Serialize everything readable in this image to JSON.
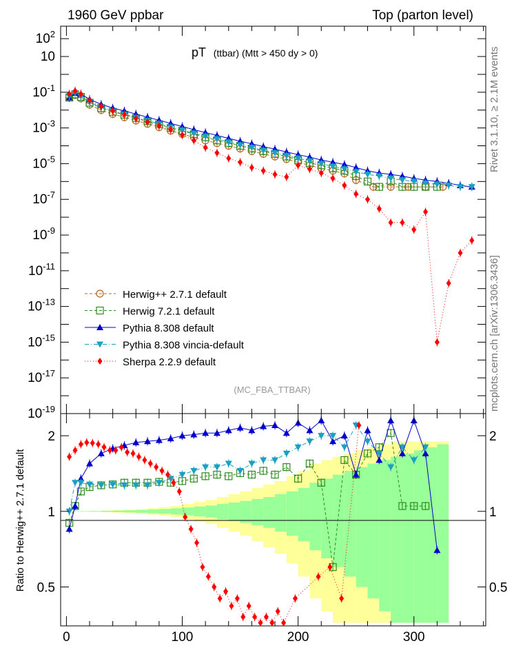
{
  "header": {
    "left": "1960 GeV ppbar",
    "right": "Top (parton level)"
  },
  "side_labels": {
    "rivet": "Rivet 3.1.10, ≥ 2.1M events",
    "mcplots": "mcplots.cern.ch [arXiv:1306.3436]"
  },
  "plot_title": {
    "main": "pT",
    "detail": "(ttbar) (Mtt > 450 dy > 0)"
  },
  "analysis_id": "(MC_FBA_TTBAR)",
  "colors": {
    "herwigpp": "#b5651d",
    "herwig7": "#2e8b1e",
    "pythia": "#0000cc",
    "vincia": "#1aa0c0",
    "sherpa": "#ff0000",
    "band_yellow": "#ffff99",
    "band_green": "#99ff99"
  },
  "chart_data": [
    {
      "type": "scatter",
      "panel": "main",
      "ylog": true,
      "xlim": [
        -5,
        362
      ],
      "ylim": [
        1e-19,
        500
      ],
      "x_ticks": [
        0,
        100,
        200,
        300
      ],
      "y_tick_labels": [
        "10^2",
        "10",
        "10^-1",
        "10^-3",
        "10^-5",
        "10^-7",
        "10^-9",
        "10^-11",
        "10^-13",
        "10^-15",
        "10^-17",
        "10^-19"
      ],
      "legend_position": "bottom-left",
      "series": [
        {
          "name": "Herwig++ 2.7.1 default",
          "key": "herwigpp",
          "marker": "open-circle",
          "line": "dashed",
          "x": [
            2.5,
            7.5,
            12.5,
            20,
            30,
            40,
            50,
            60,
            70,
            80,
            90,
            100,
            110,
            120,
            130,
            140,
            150,
            160,
            170,
            180,
            190,
            200,
            210,
            220,
            230,
            240,
            250,
            265,
            280,
            295,
            310,
            325
          ],
          "y": [
            0.06,
            0.07,
            0.045,
            0.02,
            0.01,
            0.006,
            0.004,
            0.0026,
            0.0017,
            0.0011,
            0.0007,
            0.00045,
            0.0003,
            0.0002,
            0.00014,
            0.0001,
            7e-05,
            5e-05,
            3.5e-05,
            2.5e-05,
            1.8e-05,
            1.2e-05,
            8e-06,
            5.5e-06,
            4e-06,
            2.8e-06,
            1.2e-06,
            5e-07,
            5e-07,
            5e-07,
            5e-07,
            5e-07
          ]
        },
        {
          "name": "Herwig 7.2.1 default",
          "key": "herwig7",
          "marker": "open-square",
          "line": "dashed",
          "x": [
            2.5,
            7.5,
            12.5,
            20,
            30,
            40,
            50,
            60,
            70,
            80,
            90,
            100,
            110,
            120,
            130,
            140,
            150,
            160,
            170,
            180,
            190,
            200,
            210,
            220,
            230,
            240,
            250,
            260,
            270,
            280,
            290,
            300,
            310,
            320
          ],
          "y": [
            0.05,
            0.075,
            0.055,
            0.026,
            0.013,
            0.008,
            0.0055,
            0.0036,
            0.0024,
            0.0016,
            0.001,
            0.0007,
            0.00045,
            0.0003,
            0.0002,
            0.00014,
            0.0001,
            7e-05,
            5e-05,
            3.5e-05,
            2.5e-05,
            1.6e-05,
            1.1e-05,
            8e-06,
            5.5e-06,
            4e-06,
            2e-06,
            1e-06,
            5e-07,
            1e-06,
            5e-07,
            5e-07,
            5e-07,
            5e-07
          ]
        },
        {
          "name": "Pythia 8.308 default",
          "key": "pythia",
          "marker": "filled-triangle-up",
          "line": "solid",
          "x": [
            2.5,
            7.5,
            12.5,
            20,
            30,
            40,
            50,
            60,
            70,
            80,
            90,
            100,
            110,
            120,
            130,
            140,
            150,
            160,
            170,
            180,
            190,
            200,
            210,
            220,
            230,
            240,
            250,
            260,
            270,
            280,
            290,
            300,
            310,
            320,
            330,
            340,
            350
          ],
          "y": [
            0.05,
            0.09,
            0.08,
            0.04,
            0.021,
            0.013,
            0.009,
            0.006,
            0.004,
            0.0027,
            0.0018,
            0.0012,
            0.0008,
            0.00055,
            0.00038,
            0.00026,
            0.00018,
            0.00013,
            9e-05,
            6.5e-05,
            4.5e-05,
            3.2e-05,
            2.3e-05,
            1.6e-05,
            1.2e-05,
            9e-06,
            6e-06,
            4e-06,
            3e-06,
            2.5e-06,
            2e-06,
            1.5e-06,
            1.2e-06,
            1e-06,
            8e-07,
            6e-07,
            5e-07
          ]
        },
        {
          "name": "Pythia 8.308 vincia-default",
          "key": "vincia",
          "marker": "filled-triangle-down",
          "line": "dashdot",
          "x": [
            2.5,
            7.5,
            12.5,
            20,
            30,
            40,
            50,
            60,
            70,
            80,
            90,
            100,
            110,
            120,
            130,
            140,
            150,
            160,
            170,
            180,
            190,
            200,
            210,
            220,
            230,
            240,
            250,
            260,
            270,
            280,
            290,
            300,
            310,
            320,
            330,
            340,
            350
          ],
          "y": [
            0.06,
            0.09,
            0.06,
            0.028,
            0.014,
            0.0085,
            0.0058,
            0.0038,
            0.0026,
            0.0017,
            0.0011,
            0.00075,
            0.0005,
            0.00034,
            0.00024,
            0.00016,
            0.00011,
            8e-05,
            5.5e-05,
            4e-05,
            2.8e-05,
            2e-05,
            1.4e-05,
            1e-05,
            7e-06,
            5e-06,
            3.5e-06,
            2.5e-06,
            2e-06,
            1.5e-06,
            1.2e-06,
            1e-06,
            8e-07,
            7e-07,
            6e-07,
            5e-07,
            5e-07
          ]
        },
        {
          "name": "Sherpa 2.2.9 default",
          "key": "sherpa",
          "marker": "filled-diamond",
          "line": "dotted",
          "x": [
            2.5,
            7.5,
            12.5,
            20,
            30,
            40,
            50,
            60,
            70,
            80,
            90,
            100,
            110,
            120,
            130,
            140,
            150,
            160,
            170,
            180,
            190,
            200,
            210,
            220,
            230,
            240,
            250,
            260,
            270,
            280,
            290,
            300,
            310,
            320,
            330,
            340,
            350
          ],
          "y": [
            0.08,
            0.12,
            0.08,
            0.035,
            0.016,
            0.009,
            0.0055,
            0.0034,
            0.0021,
            0.0013,
            0.0008,
            0.0004,
            0.0002,
            8e-05,
            4e-05,
            2e-05,
            1.2e-05,
            6e-06,
            4e-06,
            2.5e-06,
            1.8e-06,
            8e-06,
            5e-06,
            3e-06,
            1.5e-06,
            6e-07,
            2e-07,
            1e-07,
            3e-08,
            5e-09,
            5e-09,
            2e-09,
            2e-08,
            1e-15,
            2e-12,
            1e-10,
            5e-10
          ]
        }
      ]
    },
    {
      "type": "scatter",
      "panel": "ratio",
      "ylog": true,
      "xlabel": "",
      "ylabel": "Ratio to Herwig++ 2.7.1 default",
      "xlim": [
        -5,
        362
      ],
      "ylim": [
        0.35,
        2.45
      ],
      "y_ticks": [
        0.5,
        1,
        2
      ],
      "y_tick_labels": [
        "0.5",
        "1",
        "2"
      ],
      "reference_line": 1,
      "reference_band": {
        "x": [
          0,
          10,
          20,
          30,
          40,
          50,
          60,
          70,
          80,
          90,
          100,
          110,
          120,
          130,
          140,
          150,
          160,
          170,
          180,
          190,
          200,
          210,
          220,
          230,
          240,
          250,
          260,
          270,
          280,
          290,
          300,
          310,
          320
        ],
        "yellow_half_width": [
          0.002,
          0.003,
          0.005,
          0.008,
          0.012,
          0.016,
          0.022,
          0.03,
          0.04,
          0.05,
          0.07,
          0.09,
          0.11,
          0.14,
          0.17,
          0.2,
          0.24,
          0.28,
          0.32,
          0.38,
          0.45,
          0.55,
          0.6,
          0.65,
          0.7,
          0.75,
          0.8,
          0.85,
          0.9,
          0.9,
          0.9,
          0.9,
          0.9
        ],
        "green_half_width": [
          0.001,
          0.002,
          0.003,
          0.005,
          0.007,
          0.01,
          0.013,
          0.017,
          0.022,
          0.028,
          0.035,
          0.045,
          0.055,
          0.07,
          0.085,
          0.1,
          0.12,
          0.14,
          0.17,
          0.2,
          0.24,
          0.3,
          0.35,
          0.4,
          0.45,
          0.5,
          0.55,
          0.6,
          0.65,
          0.7,
          0.75,
          0.8,
          0.85
        ]
      },
      "series": [
        {
          "name": "Herwig 7.2.1 default",
          "key": "herwig7",
          "marker": "open-square",
          "line": "dashed",
          "x": [
            2.5,
            7.5,
            12.5,
            20,
            30,
            40,
            50,
            60,
            70,
            80,
            90,
            100,
            110,
            120,
            130,
            140,
            150,
            160,
            170,
            180,
            190,
            200,
            210,
            220,
            230,
            240,
            250,
            260,
            270,
            280,
            290,
            300,
            310
          ],
          "y": [
            0.9,
            1.05,
            1.2,
            1.25,
            1.27,
            1.28,
            1.3,
            1.3,
            1.3,
            1.31,
            1.3,
            1.32,
            1.35,
            1.38,
            1.4,
            1.38,
            1.42,
            1.4,
            1.45,
            1.4,
            1.5,
            1.35,
            1.55,
            1.3,
            0.6,
            1.6,
            1.4,
            1.7,
            1.8,
            2.05,
            1.05,
            1.05,
            1.05
          ]
        },
        {
          "name": "Pythia 8.308 default",
          "key": "pythia",
          "marker": "filled-triangle-up",
          "line": "solid",
          "x": [
            2.5,
            7.5,
            12.5,
            20,
            30,
            40,
            50,
            60,
            70,
            80,
            90,
            100,
            110,
            120,
            130,
            140,
            150,
            160,
            170,
            180,
            190,
            200,
            210,
            220,
            230,
            240,
            250,
            260,
            270,
            280,
            290,
            300,
            310,
            320
          ],
          "y": [
            0.85,
            1.05,
            1.35,
            1.55,
            1.7,
            1.78,
            1.83,
            1.88,
            1.9,
            1.92,
            1.95,
            2.0,
            2.02,
            2.05,
            2.05,
            2.1,
            2.15,
            2.1,
            2.18,
            2.2,
            2.05,
            2.25,
            2.1,
            2.3,
            1.9,
            2.0,
            1.4,
            2.1,
            1.6,
            2.3,
            1.7,
            2.3,
            1.7,
            0.7
          ]
        },
        {
          "name": "Pythia 8.308 vincia-default",
          "key": "vincia",
          "marker": "filled-triangle-down",
          "line": "dashdot",
          "x": [
            2.5,
            7.5,
            12.5,
            20,
            30,
            40,
            50,
            60,
            70,
            80,
            90,
            100,
            110,
            120,
            130,
            140,
            150,
            160,
            170,
            180,
            190,
            200,
            210,
            220,
            230,
            240,
            250,
            260,
            270,
            280,
            290,
            300,
            310
          ],
          "y": [
            1.0,
            1.3,
            1.3,
            1.28,
            1.27,
            1.28,
            1.27,
            1.27,
            1.27,
            1.3,
            1.35,
            1.4,
            1.45,
            1.5,
            1.5,
            1.55,
            1.45,
            1.55,
            1.6,
            1.6,
            1.7,
            1.8,
            1.9,
            2.0,
            2.0,
            1.8,
            2.2,
            1.9,
            1.7,
            1.5,
            1.8,
            1.6,
            1.8
          ]
        },
        {
          "name": "Sherpa 2.2.9 default",
          "key": "sherpa",
          "marker": "filled-diamond",
          "line": "dotted",
          "x": [
            2.5,
            7.5,
            12.5,
            17.5,
            22.5,
            27.5,
            32.5,
            37.5,
            42.5,
            47.5,
            52.5,
            57.5,
            62.5,
            67.5,
            72.5,
            77.5,
            82.5,
            87.5,
            92.5,
            97.5,
            102.5,
            107.5,
            112.5,
            117.5,
            122.5,
            127.5,
            132.5,
            137.5,
            142.5,
            147.5,
            152.5,
            157.5,
            162.5,
            167.5,
            172.5,
            177.5,
            182.5,
            187.5,
            197.5,
            217.5,
            227.5,
            237.5,
            252.5
          ],
          "y": [
            1.65,
            1.75,
            1.85,
            1.88,
            1.87,
            1.85,
            1.8,
            1.75,
            1.75,
            1.8,
            1.72,
            1.7,
            1.65,
            1.6,
            1.55,
            1.5,
            1.45,
            1.4,
            1.3,
            1.2,
            0.95,
            0.85,
            0.75,
            0.6,
            0.55,
            0.5,
            0.45,
            0.48,
            0.42,
            0.45,
            0.38,
            0.42,
            0.38,
            0.36,
            0.38,
            0.35,
            0.4,
            0.36,
            0.45,
            0.55,
            0.6,
            0.45,
            2.2
          ]
        }
      ]
    }
  ]
}
